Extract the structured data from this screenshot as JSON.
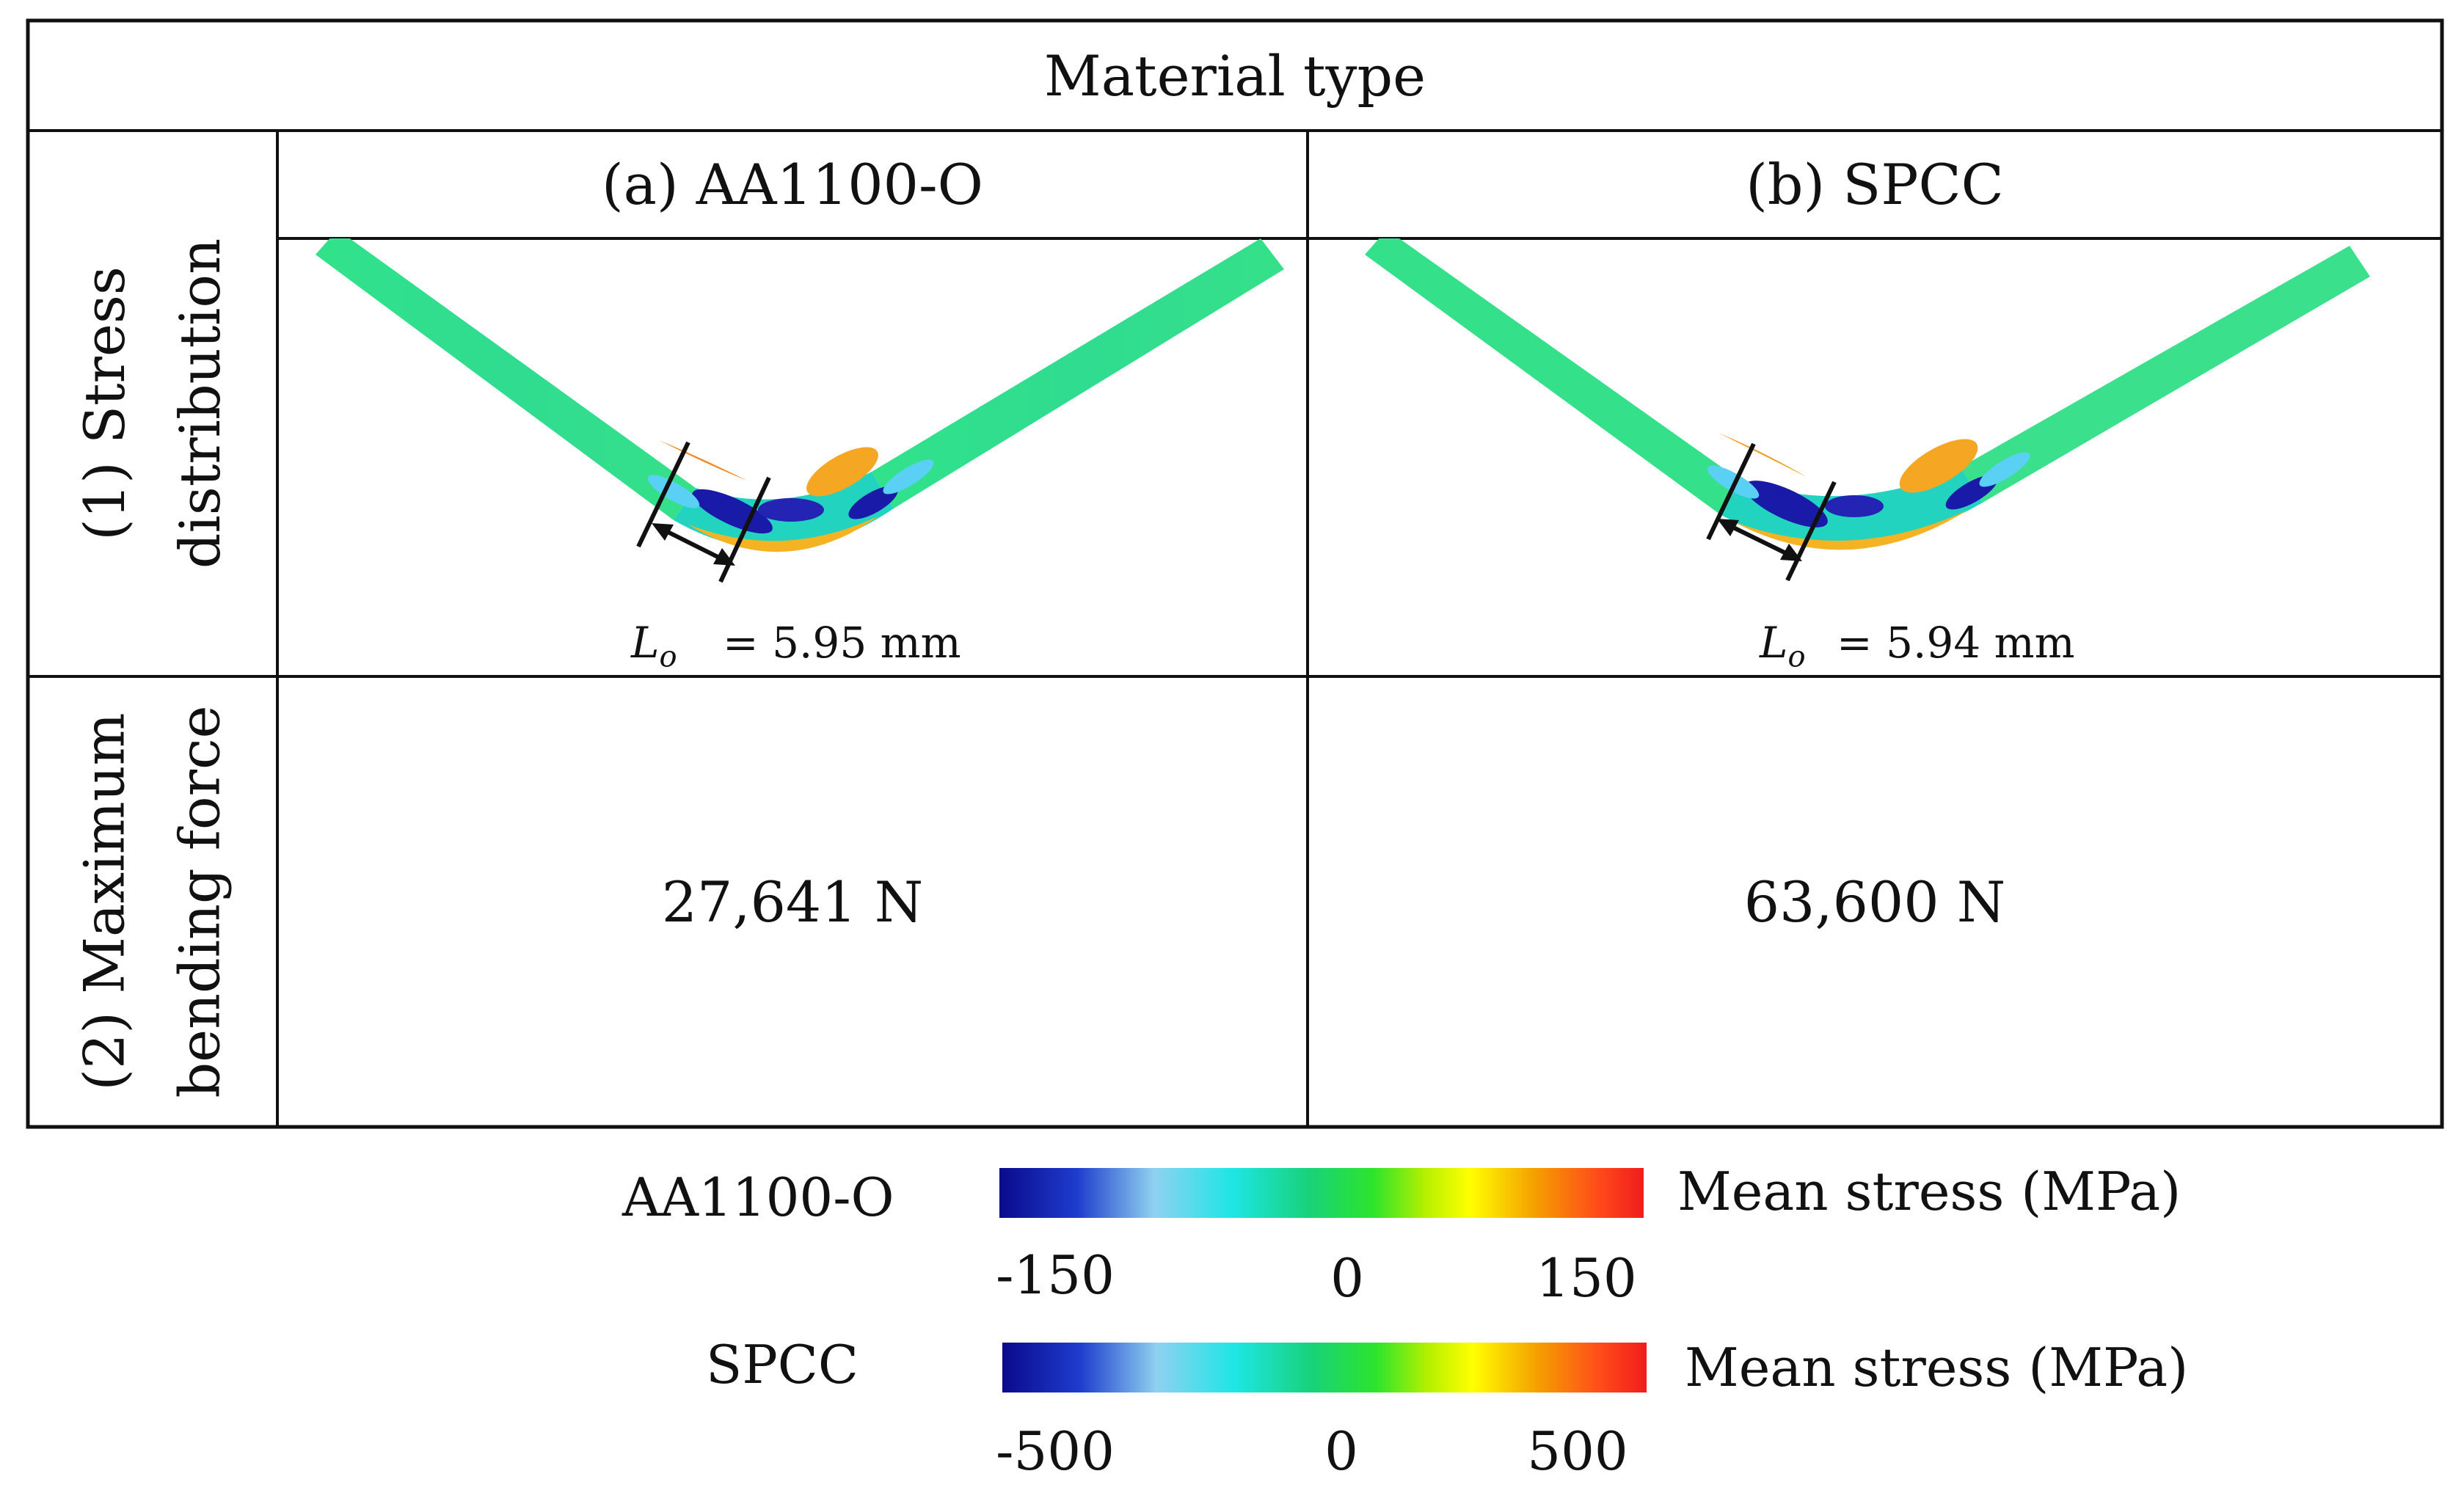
{
  "table": {
    "header": "Material type",
    "columns": [
      "(a) AA1100-O",
      "(b) SPCC"
    ],
    "rows": [
      {
        "label_line1": "(1) Stress",
        "label_line2": "distribution"
      },
      {
        "label_line1": "(2) Maximum",
        "label_line2": "bending force"
      }
    ],
    "stress_cells": [
      {
        "lo_symbol": "L",
        "lo_sub": "o",
        "lo_value": "= 5.95 mm"
      },
      {
        "lo_symbol": "L",
        "lo_sub": "o",
        "lo_value": "= 5.94 mm"
      }
    ],
    "force_values": [
      "27,641 N",
      "63,600 N"
    ]
  },
  "legend": [
    {
      "material": "AA1100-O",
      "title": "Mean stress  (MPa)",
      "ticks": [
        "-150",
        "0",
        "150"
      ]
    },
    {
      "material": "SPCC",
      "title": "Mean stress (MPa)",
      "ticks": [
        "-500",
        "0",
        "500"
      ]
    }
  ],
  "colors": {
    "line": "#111111",
    "colormap": [
      "#0a0a8c",
      "#1e3ccd",
      "#8fd1f0",
      "#1ee6e6",
      "#18d27a",
      "#2ce42c",
      "#b4f000",
      "#ffff00",
      "#f5a000",
      "#ff4a1a",
      "#f01c1c"
    ],
    "part_base": "#2ee08a",
    "compress_dark": "#1a1aa8",
    "tension_warm": "#f5a623"
  }
}
